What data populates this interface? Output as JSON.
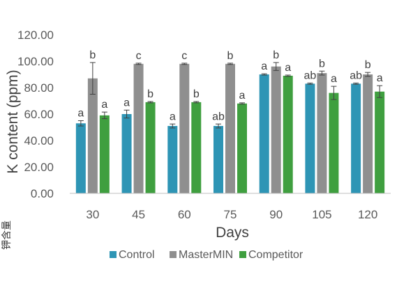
{
  "chart_data": {
    "type": "bar",
    "ylabel": "K content (ppm)",
    "xlabel": "Days",
    "categories": [
      "30",
      "45",
      "60",
      "75",
      "90",
      "105",
      "120"
    ],
    "ylim": [
      0,
      120
    ],
    "yticks": [
      "0.00",
      "20.00",
      "40.00",
      "60.00",
      "80.00",
      "100.00",
      "120.00"
    ],
    "grid": false,
    "legend_position": "bottom",
    "series": [
      {
        "name": "Control",
        "color": "#2e95b5",
        "values": [
          53,
          60,
          51,
          51,
          90,
          83,
          83
        ],
        "errors": [
          2,
          3,
          1.5,
          1.5,
          0.5,
          0.5,
          0.5
        ],
        "letters": [
          "a",
          "a",
          "a",
          "ab",
          "a",
          "ab",
          "ab"
        ]
      },
      {
        "name": "MasterMIN",
        "color": "#8f8f8f",
        "values": [
          87,
          98,
          98,
          98,
          96,
          91,
          90
        ],
        "errors": [
          12,
          0.5,
          0.5,
          0.5,
          3,
          1.5,
          1.5
        ],
        "letters": [
          "b",
          "c",
          "c",
          "b",
          "b",
          "b",
          "b"
        ]
      },
      {
        "name": "Competitor",
        "color": "#3f9f3f",
        "values": [
          59,
          69,
          69,
          68,
          89,
          76,
          77
        ],
        "errors": [
          2.5,
          0.5,
          0.5,
          0.5,
          0.5,
          5,
          4.5
        ],
        "letters": [
          "a",
          "b",
          "b",
          "a",
          "a",
          "a",
          "a"
        ]
      }
    ]
  },
  "side_note": "钾含量"
}
